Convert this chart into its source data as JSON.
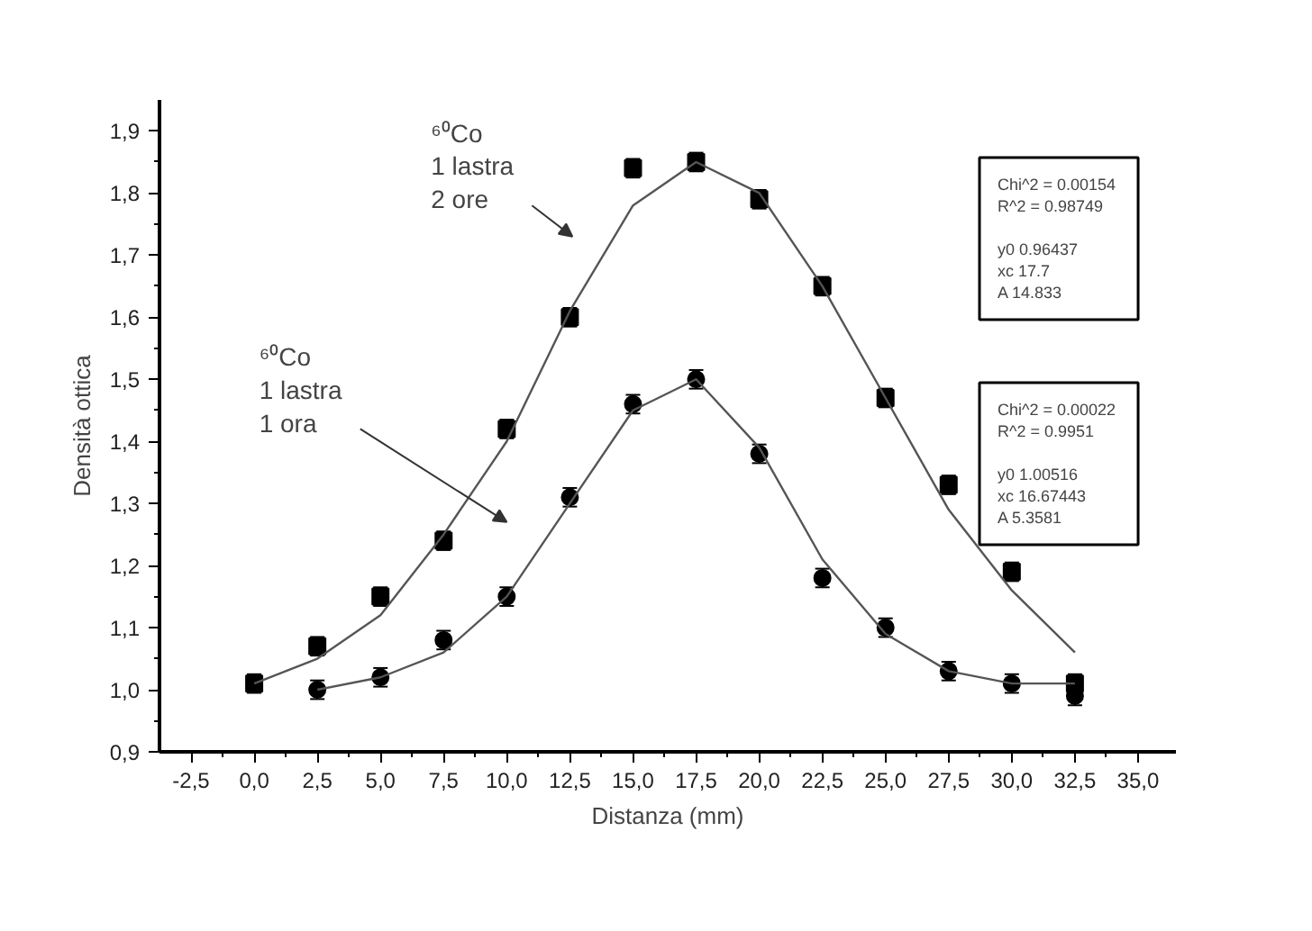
{
  "chart_data": {
    "type": "scatter",
    "xlabel": "Distanza (mm)",
    "ylabel": "Densità ottica",
    "xlim": [
      -3.75,
      36.5
    ],
    "ylim": [
      0.9,
      1.95
    ],
    "xticks": [
      {
        "value": -2.5,
        "label": "-2,5"
      },
      {
        "value": 0,
        "label": "0,0"
      },
      {
        "value": 2.5,
        "label": "2,5"
      },
      {
        "value": 5,
        "label": "5,0"
      },
      {
        "value": 7.5,
        "label": "7,5"
      },
      {
        "value": 10,
        "label": "10,0"
      },
      {
        "value": 12.5,
        "label": "12,5"
      },
      {
        "value": 15,
        "label": "15,0"
      },
      {
        "value": 17.5,
        "label": "17,5"
      },
      {
        "value": 20,
        "label": "20,0"
      },
      {
        "value": 22.5,
        "label": "22,5"
      },
      {
        "value": 25,
        "label": "25,0"
      },
      {
        "value": 27.5,
        "label": "27,5"
      },
      {
        "value": 30,
        "label": "30,0"
      },
      {
        "value": 32.5,
        "label": "32,5"
      },
      {
        "value": 35,
        "label": "35,0"
      }
    ],
    "yticks": [
      {
        "value": 0.9,
        "label": "0,9"
      },
      {
        "value": 1.0,
        "label": "1,0"
      },
      {
        "value": 1.1,
        "label": "1,1"
      },
      {
        "value": 1.2,
        "label": "1,2"
      },
      {
        "value": 1.3,
        "label": "1,3"
      },
      {
        "value": 1.4,
        "label": "1,4"
      },
      {
        "value": 1.5,
        "label": "1,5"
      },
      {
        "value": 1.6,
        "label": "1,6"
      },
      {
        "value": 1.7,
        "label": "1,7"
      },
      {
        "value": 1.8,
        "label": "1,8"
      },
      {
        "value": 1.9,
        "label": "1,9"
      }
    ],
    "grid": false,
    "series": [
      {
        "marker": "square",
        "color": "#000000",
        "x": [
          0,
          2.5,
          5,
          7.5,
          10,
          12.5,
          15,
          17.5,
          20,
          22.5,
          25,
          27.5,
          30,
          32.5
        ],
        "values": [
          1.01,
          1.07,
          1.15,
          1.24,
          1.42,
          1.6,
          1.84,
          1.85,
          1.79,
          1.65,
          1.47,
          1.33,
          1.19,
          1.01
        ],
        "errors": [
          0.015,
          0.015,
          0.015,
          0.015,
          0.015,
          0.015,
          0.015,
          0.015,
          0.015,
          0.015,
          0.015,
          0.015,
          0.015,
          0.015
        ]
      },
      {
        "marker": "circle",
        "color": "#000000",
        "x": [
          2.5,
          5,
          7.5,
          10,
          12.5,
          15,
          17.5,
          20,
          22.5,
          25,
          27.5,
          30,
          32.5
        ],
        "values": [
          1.0,
          1.02,
          1.08,
          1.15,
          1.31,
          1.46,
          1.5,
          1.38,
          1.18,
          1.1,
          1.03,
          1.01,
          0.99
        ],
        "errors": [
          0.015,
          0.015,
          0.015,
          0.015,
          0.015,
          0.015,
          0.015,
          0.015,
          0.015,
          0.015,
          0.015,
          0.015,
          0.015
        ]
      },
      {
        "type": "line",
        "line_style": "solid",
        "color": "#555555",
        "x": [
          0,
          2.5,
          5,
          7.5,
          10,
          12.5,
          15,
          17.5,
          20,
          22.5,
          25,
          27.5,
          30,
          32.5
        ],
        "values": [
          1.01,
          1.05,
          1.12,
          1.25,
          1.4,
          1.61,
          1.78,
          1.85,
          1.8,
          1.65,
          1.47,
          1.29,
          1.16,
          1.06
        ]
      },
      {
        "type": "line",
        "line_style": "solid",
        "color": "#555555",
        "x": [
          2.5,
          5,
          7.5,
          10,
          12.5,
          15,
          17.5,
          20,
          22.5,
          25,
          27.5,
          30,
          32.5
        ],
        "values": [
          1.0,
          1.02,
          1.06,
          1.15,
          1.3,
          1.45,
          1.5,
          1.39,
          1.21,
          1.09,
          1.03,
          1.01,
          1.01
        ]
      }
    ],
    "annotations": [
      "⁶⁰Co\n1 lastra\n2 ore",
      "⁶⁰Co\n1 lastra\n1 ora",
      "Chi^2  = 0.00154\nR^2    = 0.98749\n\ny0       0.96437\nxc       17.7\nA         14.833",
      "Chi^2  = 0.00022\nR^2    = 0.9951\n\ny0       1.00516\nxc       16.67443\nA         5.3581"
    ]
  }
}
